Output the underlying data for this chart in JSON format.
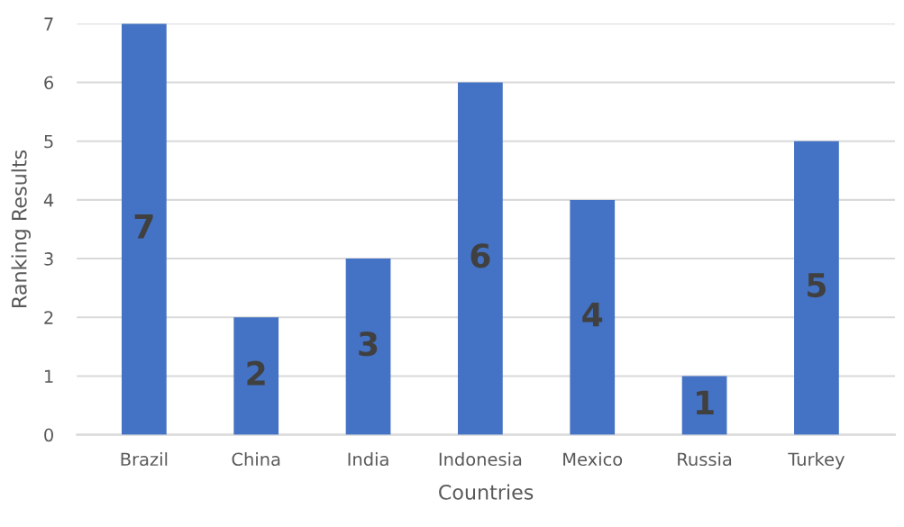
{
  "chart_data": {
    "type": "bar",
    "xlabel": "Countries",
    "ylabel": "Ranking Results",
    "categories": [
      "Brazil",
      "China",
      "India",
      "Indonesia",
      "Mexico",
      "Russia",
      "Turkey"
    ],
    "values": [
      7,
      2,
      3,
      6,
      4,
      1,
      5
    ],
    "color": "#4472c4",
    "ylim": [
      0,
      7
    ],
    "yticks": [
      0,
      1,
      2,
      3,
      4,
      5,
      6,
      7
    ],
    "grid": "y",
    "data_labels": true
  }
}
